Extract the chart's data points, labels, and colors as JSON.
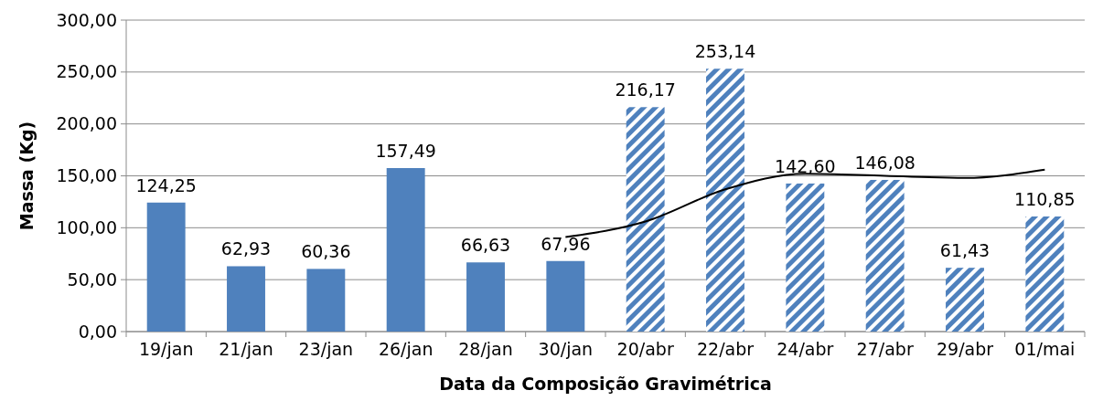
{
  "chart_data": {
    "type": "bar",
    "xlabel": "Data da Composição Gravimétrica",
    "ylabel": "Massa (Kg)",
    "categories": [
      "19/jan",
      "21/jan",
      "23/jan",
      "26/jan",
      "28/jan",
      "30/jan",
      "20/abr",
      "22/abr",
      "24/abr",
      "27/abr",
      "29/abr",
      "01/mai"
    ],
    "series": [
      {
        "color": "#4f81bd",
        "values": [
          124.25,
          62.93,
          60.36,
          157.49,
          66.63,
          67.96,
          null,
          null,
          null,
          null,
          null,
          null
        ],
        "value_labels": [
          "124,25",
          "62,93",
          "60,36",
          "157,49",
          "66,63",
          "67,96",
          null,
          null,
          null,
          null,
          null,
          null
        ]
      },
      {
        "color": "#4f81bd",
        "values": [
          null,
          null,
          null,
          null,
          null,
          null,
          216.17,
          253.14,
          142.6,
          146.08,
          61.43,
          110.85
        ],
        "value_labels": [
          null,
          null,
          null,
          null,
          null,
          null,
          "216,17",
          "253,14",
          "142,60",
          "146,08",
          "61,43",
          "110,85"
        ]
      },
      {
        "type": "line",
        "color": "#000000",
        "x": [
          "30/jan",
          "20/abr",
          "22/abr",
          "24/abr",
          "27/abr",
          "29/abr",
          "01/mai"
        ],
        "values": [
          91,
          106,
          137,
          152,
          150,
          148,
          156
        ]
      }
    ],
    "ylim": [
      0,
      300
    ],
    "yticks": [
      {
        "value": 0,
        "label": "0,00"
      },
      {
        "value": 50,
        "label": "50,00"
      },
      {
        "value": 100,
        "label": "100,00"
      },
      {
        "value": 150,
        "label": "150,00"
      },
      {
        "value": 200,
        "label": "200,00"
      },
      {
        "value": 250,
        "label": "250,00"
      },
      {
        "value": 300,
        "label": "300,00"
      }
    ],
    "grid": "y"
  }
}
